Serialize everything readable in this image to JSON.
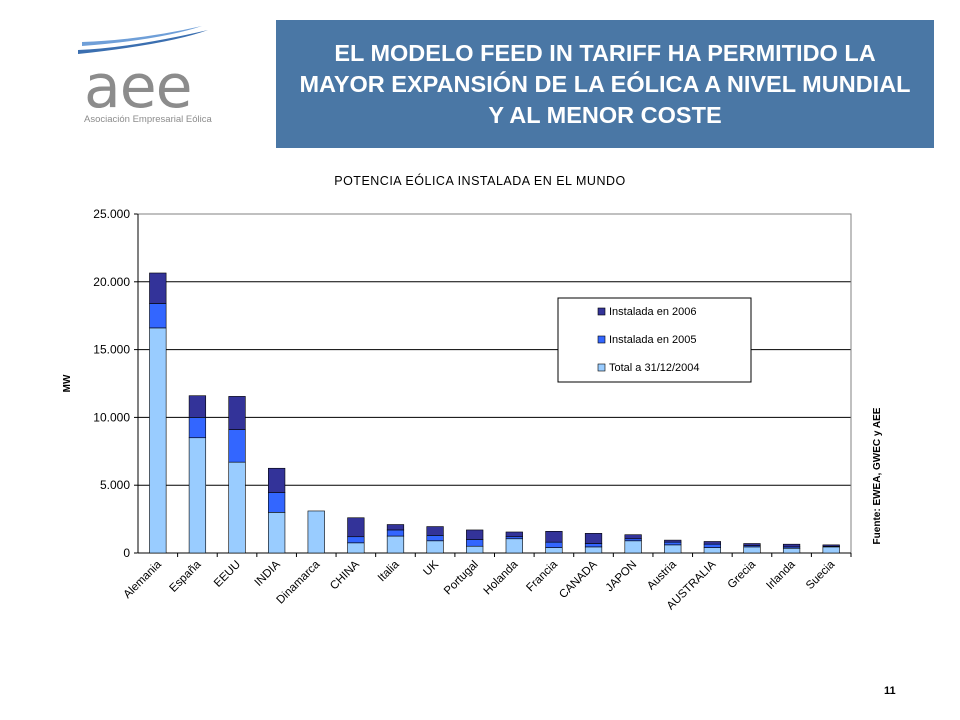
{
  "header": {
    "logo_name": "aee",
    "logo_subtitle": "Asociación Empresarial Eólica",
    "title": "EL MODELO FEED IN TARIFF HA PERMITIDO LA MAYOR EXPANSIÓN DE LA EÓLICA A NIVEL MUNDIAL Y AL MENOR COSTE"
  },
  "footer": {
    "page_number": "11"
  },
  "chart_data": {
    "type": "bar",
    "stacked": true,
    "title": "POTENCIA EÓLICA INSTALADA EN EL MUNDO",
    "ylabel": "MW",
    "xlabel": "",
    "source_note": "Fuente: EWEA, GWEC y AEE",
    "ylim": [
      0,
      25000
    ],
    "yticks": [
      "0",
      "5.000",
      "10.000",
      "15.000",
      "20.000",
      "25.000"
    ],
    "grid": true,
    "legend_position": "right",
    "categories": [
      "Alemania",
      "España",
      "EEUU",
      "INDIA",
      "Dinamarca",
      "CHINA",
      "Italia",
      "UK",
      "Portugal",
      "Holanda",
      "Francia",
      "CANADA",
      "JAPON",
      "Austria",
      "AUSTRALIA",
      "Grecia",
      "Irlanda",
      "Suecia"
    ],
    "series": [
      {
        "name": "Total a 31/12/2004",
        "color": "#99ccff",
        "values": [
          16600,
          8500,
          6700,
          3000,
          3100,
          750,
          1250,
          900,
          500,
          1050,
          400,
          450,
          900,
          600,
          400,
          450,
          350,
          450
        ]
      },
      {
        "name": "Instalada en 2005",
        "color": "#3366ff",
        "values": [
          1800,
          1500,
          2400,
          1450,
          0,
          450,
          450,
          400,
          500,
          150,
          400,
          250,
          150,
          200,
          250,
          100,
          100,
          50
        ]
      },
      {
        "name": "Instalada en 2006",
        "color": "#333399",
        "values": [
          2250,
          1600,
          2450,
          1800,
          0,
          1400,
          400,
          650,
          700,
          350,
          800,
          750,
          300,
          150,
          200,
          150,
          200,
          100
        ]
      }
    ]
  }
}
